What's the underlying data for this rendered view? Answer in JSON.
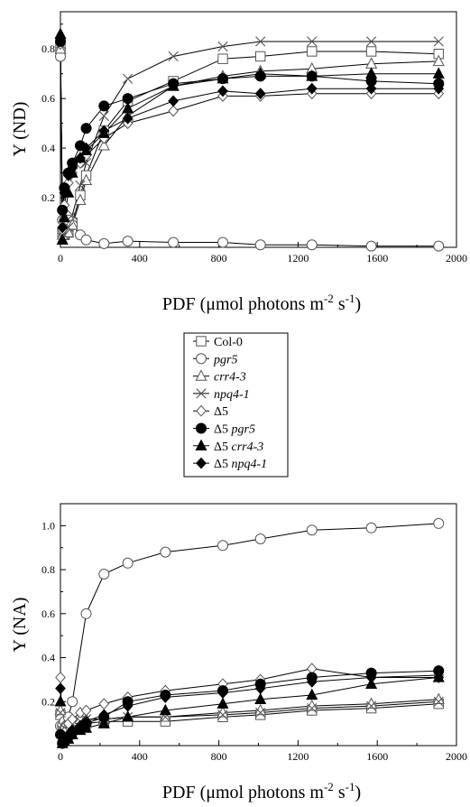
{
  "colors": {
    "line": "#000000",
    "marker_stroke": "#555555",
    "background": "#ffffff"
  },
  "legend": {
    "entries": [
      {
        "prefix": "",
        "name": "Col-0",
        "italic": "",
        "marker": "square-open"
      },
      {
        "prefix": "",
        "name": "",
        "italic": "pgr5",
        "marker": "circle-open"
      },
      {
        "prefix": "",
        "name": "",
        "italic": "crr4-3",
        "marker": "triangle-open"
      },
      {
        "prefix": "",
        "name": "",
        "italic": "npq4-1",
        "marker": "x"
      },
      {
        "prefix": "Δ5",
        "name": "",
        "italic": "",
        "marker": "diamond-open"
      },
      {
        "prefix": "Δ5 ",
        "name": "",
        "italic": "pgr5",
        "marker": "circle-filled"
      },
      {
        "prefix": "Δ5 ",
        "name": "",
        "italic": "crr4-3",
        "marker": "triangle-filled"
      },
      {
        "prefix": "Δ5 ",
        "name": "",
        "italic": "npq4-1",
        "marker": "diamond-filled"
      }
    ]
  },
  "chart_data": [
    {
      "type": "line",
      "ylabel": "Y (ND)",
      "xlabel": {
        "main": "PDF (μmol photons m",
        "sup1": "-2",
        "mid": " s",
        "sup2": "-1",
        "end": ")"
      },
      "xlim": [
        0,
        2000
      ],
      "ylim": [
        0,
        0.95
      ],
      "x_ticks": [
        "0",
        "400",
        "800",
        "1200",
        "1600",
        "2000"
      ],
      "x_tick_values": [
        0,
        400,
        800,
        1200,
        1600,
        2000
      ],
      "y_ticks": [
        "0.2",
        "0.4",
        "0.6",
        "0.8"
      ],
      "y_tick_values": [
        0.2,
        0.4,
        0.6,
        0.8
      ],
      "series": [
        {
          "name": "Col-0",
          "marker": "square-open",
          "x": [
            0,
            10,
            20,
            40,
            60,
            100,
            130,
            220,
            340,
            570,
            820,
            1010,
            1270,
            1570,
            1910
          ],
          "y": [
            0.8,
            0.06,
            0.05,
            0.06,
            0.1,
            0.21,
            0.29,
            0.47,
            0.59,
            0.67,
            0.76,
            0.77,
            0.79,
            0.79,
            0.78
          ]
        },
        {
          "name": "pgr5",
          "marker": "circle-open",
          "x": [
            0,
            10,
            20,
            40,
            60,
            100,
            130,
            220,
            340,
            570,
            820,
            1010,
            1270,
            1570,
            1910
          ],
          "y": [
            0.77,
            0.11,
            0.11,
            0.11,
            0.09,
            0.05,
            0.03,
            0.015,
            0.025,
            0.02,
            0.02,
            0.01,
            0.01,
            0.005,
            0.005
          ]
        },
        {
          "name": "crr4-3",
          "marker": "triangle-open",
          "x": [
            0,
            10,
            20,
            40,
            60,
            100,
            130,
            220,
            340,
            570,
            820,
            1010,
            1270,
            1570,
            1910
          ],
          "y": [
            0.8,
            0.05,
            0.05,
            0.06,
            0.09,
            0.19,
            0.27,
            0.41,
            0.53,
            0.65,
            0.69,
            0.71,
            0.72,
            0.74,
            0.75
          ]
        },
        {
          "name": "npq4-1",
          "marker": "x",
          "x": [
            0,
            10,
            20,
            40,
            60,
            100,
            130,
            220,
            340,
            570,
            820,
            1010,
            1270,
            1570,
            1910
          ],
          "y": [
            0.82,
            0.04,
            0.05,
            0.08,
            0.13,
            0.25,
            0.34,
            0.53,
            0.68,
            0.77,
            0.81,
            0.83,
            0.83,
            0.83,
            0.83
          ]
        },
        {
          "name": "Δ5",
          "marker": "diamond-open",
          "x": [
            0,
            10,
            20,
            40,
            60,
            100,
            130,
            220,
            340,
            570,
            820,
            1010,
            1270,
            1570,
            1910
          ],
          "y": [
            0.82,
            0.07,
            0.17,
            0.26,
            0.3,
            0.34,
            0.37,
            0.44,
            0.5,
            0.55,
            0.61,
            0.61,
            0.62,
            0.62,
            0.62
          ]
        },
        {
          "name": "Δ5 pgr5",
          "marker": "circle-filled",
          "x": [
            0,
            10,
            20,
            40,
            60,
            100,
            130,
            220,
            340,
            570,
            820,
            1010,
            1270,
            1570,
            1910
          ],
          "y": [
            0.83,
            0.15,
            0.24,
            0.3,
            0.34,
            0.41,
            0.48,
            0.57,
            0.6,
            0.66,
            0.68,
            0.69,
            0.69,
            0.67,
            0.66
          ]
        },
        {
          "name": "Δ5 crr4-3",
          "marker": "triangle-filled",
          "x": [
            0,
            10,
            20,
            40,
            60,
            100,
            130,
            220,
            340,
            570,
            820,
            1010,
            1270,
            1570,
            1910
          ],
          "y": [
            0.86,
            0.03,
            0.12,
            0.22,
            0.3,
            0.36,
            0.39,
            0.46,
            0.56,
            0.65,
            0.68,
            0.7,
            0.69,
            0.7,
            0.7
          ]
        },
        {
          "name": "Δ5 npq4-1",
          "marker": "diamond-filled",
          "x": [
            0,
            10,
            20,
            40,
            60,
            100,
            130,
            220,
            340,
            570,
            820,
            1010,
            1270,
            1570,
            1910
          ],
          "y": [
            0.84,
            0.08,
            0.22,
            0.29,
            0.32,
            0.36,
            0.4,
            0.47,
            0.52,
            0.59,
            0.63,
            0.62,
            0.64,
            0.64,
            0.64
          ]
        }
      ]
    },
    {
      "type": "line",
      "ylabel": "Y (NA)",
      "xlabel": {
        "main": "PDF (μmol photons m",
        "sup1": "-2",
        "mid": " s",
        "sup2": "-1",
        "end": ")"
      },
      "xlim": [
        0,
        2000
      ],
      "ylim": [
        0,
        1.1
      ],
      "x_ticks": [
        "0",
        "400",
        "800",
        "1200",
        "1600",
        "2000"
      ],
      "x_tick_values": [
        0,
        400,
        800,
        1200,
        1600,
        2000
      ],
      "y_ticks": [
        "0.2",
        "0.4",
        "0.6",
        "0.8",
        "1.0"
      ],
      "y_tick_values": [
        0.2,
        0.4,
        0.6,
        0.8,
        1.0
      ],
      "series": [
        {
          "name": "Col-0",
          "marker": "square-open",
          "x": [
            0,
            10,
            20,
            40,
            60,
            100,
            130,
            220,
            340,
            530,
            820,
            1010,
            1270,
            1570,
            1910
          ],
          "y": [
            0.14,
            0.07,
            0.08,
            0.08,
            0.09,
            0.1,
            0.1,
            0.11,
            0.11,
            0.11,
            0.13,
            0.14,
            0.16,
            0.17,
            0.19
          ]
        },
        {
          "name": "pgr5",
          "marker": "circle-open",
          "x": [
            0,
            10,
            20,
            40,
            60,
            130,
            220,
            340,
            530,
            820,
            1010,
            1270,
            1570,
            1910
          ],
          "y": [
            0.09,
            0.09,
            0.11,
            0.13,
            0.2,
            0.6,
            0.78,
            0.83,
            0.88,
            0.91,
            0.94,
            0.98,
            0.99,
            1.01
          ]
        },
        {
          "name": "crr4-3",
          "marker": "triangle-open",
          "x": [
            0,
            10,
            20,
            40,
            60,
            100,
            130,
            220,
            340,
            530,
            820,
            1010,
            1270,
            1570,
            1910
          ],
          "y": [
            0.16,
            0.08,
            0.09,
            0.1,
            0.11,
            0.12,
            0.12,
            0.12,
            0.13,
            0.13,
            0.15,
            0.16,
            0.18,
            0.19,
            0.21
          ]
        },
        {
          "name": "npq4-1",
          "marker": "x",
          "x": [
            0,
            10,
            20,
            40,
            60,
            100,
            130,
            220,
            340,
            530,
            820,
            1010,
            1270,
            1570,
            1910
          ],
          "y": [
            0.15,
            0.07,
            0.08,
            0.09,
            0.1,
            0.11,
            0.12,
            0.12,
            0.13,
            0.13,
            0.14,
            0.15,
            0.17,
            0.18,
            0.2
          ]
        },
        {
          "name": "Δ5",
          "marker": "diamond-open",
          "x": [
            0,
            10,
            20,
            40,
            60,
            100,
            130,
            220,
            340,
            530,
            820,
            1010,
            1270,
            1570,
            1910
          ],
          "y": [
            0.31,
            0.02,
            0.06,
            0.1,
            0.12,
            0.15,
            0.16,
            0.19,
            0.22,
            0.25,
            0.28,
            0.3,
            0.35,
            0.31,
            0.32
          ]
        },
        {
          "name": "Δ5 pgr5",
          "marker": "circle-filled",
          "x": [
            0,
            10,
            20,
            40,
            60,
            100,
            130,
            220,
            340,
            530,
            820,
            1010,
            1270,
            1570,
            1910
          ],
          "y": [
            0.05,
            0.01,
            0.02,
            0.04,
            0.06,
            0.08,
            0.1,
            0.13,
            0.2,
            0.23,
            0.25,
            0.28,
            0.31,
            0.33,
            0.34
          ]
        },
        {
          "name": "Δ5 crr4-3",
          "marker": "triangle-filled",
          "x": [
            0,
            10,
            20,
            40,
            60,
            100,
            130,
            220,
            340,
            530,
            820,
            1010,
            1270,
            1570,
            1910
          ],
          "y": [
            0.2,
            0.01,
            0.02,
            0.03,
            0.05,
            0.07,
            0.08,
            0.1,
            0.13,
            0.16,
            0.19,
            0.21,
            0.23,
            0.28,
            0.31
          ]
        },
        {
          "name": "Δ5 npq4-1",
          "marker": "diamond-filled",
          "x": [
            0,
            10,
            20,
            40,
            60,
            100,
            130,
            220,
            340,
            530,
            820,
            1010,
            1270,
            1570,
            1910
          ],
          "y": [
            0.26,
            0.02,
            0.03,
            0.05,
            0.07,
            0.09,
            0.11,
            0.14,
            0.18,
            0.22,
            0.24,
            0.26,
            0.29,
            0.31,
            0.31
          ]
        }
      ]
    }
  ]
}
